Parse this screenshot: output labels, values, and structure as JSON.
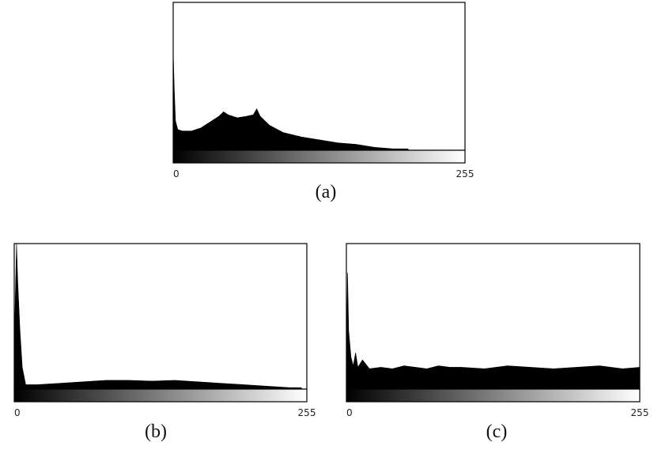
{
  "chart_data": [
    {
      "type": "area",
      "caption": "(a)",
      "color": "#000000",
      "x": [
        0,
        1,
        2,
        4,
        8,
        16,
        24,
        32,
        40,
        44,
        48,
        56,
        64,
        70,
        73,
        76,
        84,
        96,
        112,
        128,
        144,
        160,
        176,
        192,
        205,
        206
      ],
      "values": [
        67,
        40,
        20,
        14,
        13,
        13,
        15,
        19,
        23,
        26,
        24,
        22,
        23,
        24,
        28,
        23,
        17,
        12,
        9,
        7,
        5,
        4,
        2,
        1,
        1,
        0
      ],
      "xlim": [
        0,
        255
      ],
      "ylim": [
        0,
        100
      ],
      "xticks": [
        0,
        255
      ]
    },
    {
      "type": "area",
      "caption": "(b)",
      "color": "#000000",
      "x": [
        0,
        2,
        3,
        5,
        7,
        10,
        20,
        40,
        60,
        80,
        100,
        120,
        140,
        160,
        180,
        200,
        220,
        240,
        250,
        251
      ],
      "values": [
        30,
        100,
        75,
        40,
        15,
        3,
        3,
        4,
        5,
        6,
        6,
        5.5,
        6,
        5,
        4,
        3,
        2,
        1,
        1,
        0
      ],
      "xlim": [
        0,
        255
      ],
      "ylim": [
        0,
        100
      ],
      "xticks": [
        0,
        255
      ]
    },
    {
      "type": "area",
      "caption": "(c)",
      "color": "#000000",
      "x": [
        0,
        1,
        2,
        4,
        6,
        8,
        10,
        14,
        20,
        30,
        40,
        50,
        60,
        70,
        80,
        90,
        100,
        120,
        140,
        160,
        180,
        200,
        220,
        240,
        255
      ],
      "values": [
        20,
        80,
        40,
        22,
        16,
        25,
        15,
        20,
        14,
        15,
        14,
        16,
        15,
        14,
        16,
        15,
        15,
        14,
        16,
        15,
        14,
        15,
        16,
        14,
        15
      ],
      "xlim": [
        0,
        255
      ],
      "ylim": [
        0,
        100
      ],
      "xticks": [
        0,
        255
      ]
    }
  ]
}
